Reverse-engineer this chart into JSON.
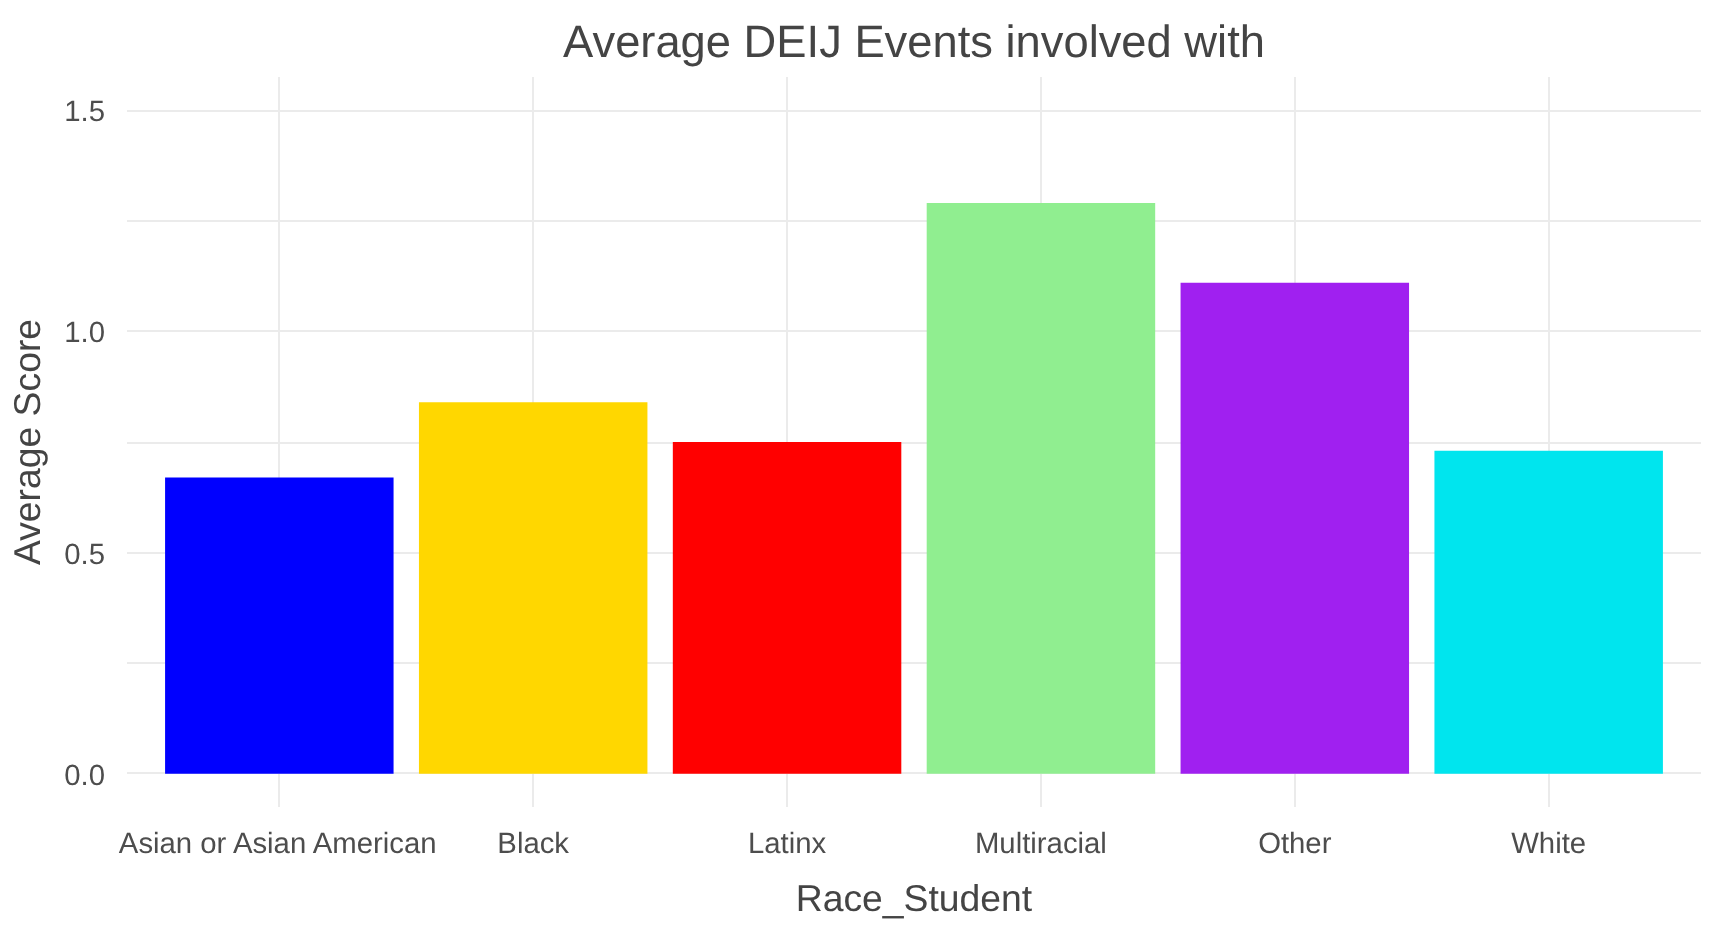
{
  "chart_data": {
    "type": "bar",
    "title": "Average DEIJ Events involved with",
    "xlabel": "Race_Student",
    "ylabel": "Average Score",
    "categories": [
      "Asian or Asian American",
      "Black",
      "Latinx",
      "Multiracial",
      "Other",
      "White"
    ],
    "values": [
      0.67,
      0.84,
      0.75,
      1.29,
      1.11,
      0.73
    ],
    "colors": [
      "#0000ff",
      "#ffd700",
      "#ff0000",
      "#90ee90",
      "#a020f0",
      "#00e5ee"
    ],
    "ylim": [
      -0.075,
      1.575
    ],
    "yticks": [
      {
        "value": 0,
        "label": "0.0"
      },
      {
        "value": 0.25,
        "label": null
      },
      {
        "value": 0.5,
        "label": "0.5"
      },
      {
        "value": 0.75,
        "label": null
      },
      {
        "value": 1,
        "label": "1.0"
      },
      {
        "value": 1.25,
        "label": null
      },
      {
        "value": 1.5,
        "label": "1.5"
      }
    ],
    "grid": true
  }
}
